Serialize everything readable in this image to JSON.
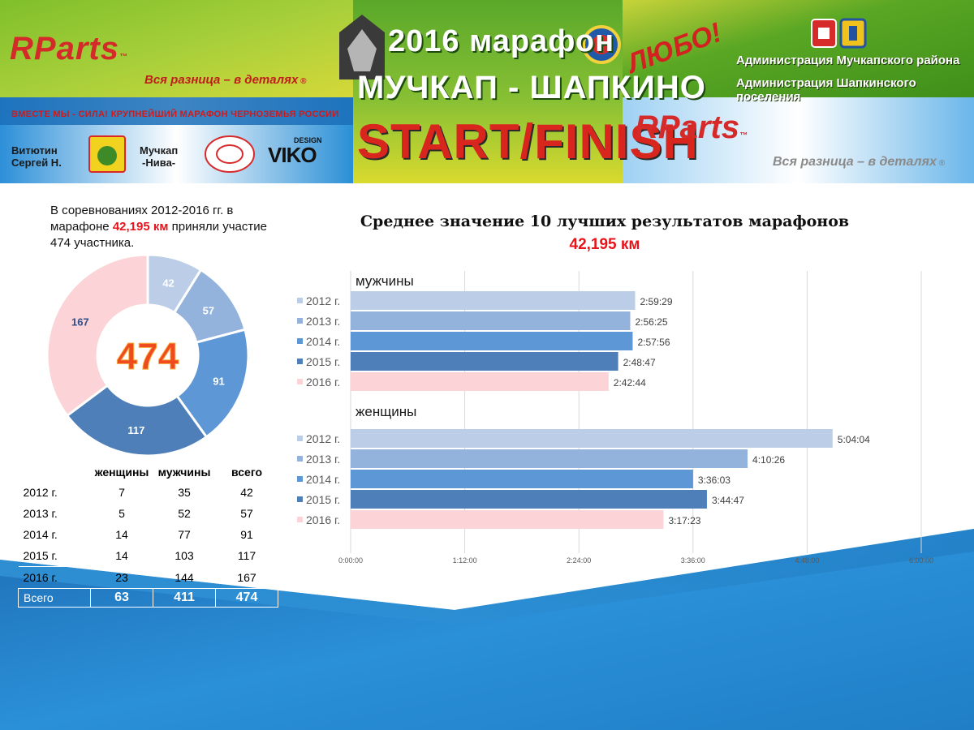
{
  "banner": {
    "brand_left": "RParts",
    "tm": "™",
    "brand_left_tagline": "Вся разница – в деталях",
    "slogan": "ВМЕСТЕ МЫ - СИЛА! КРУПНЕЙШИЙ МАРАФОН ЧЕРНОЗЕМЬЯ РОССИИ",
    "sponsor_1": [
      "Витютин",
      "Сергей Н."
    ],
    "sponsor_2": [
      "Мучкап",
      "-Нива-"
    ],
    "sponsor_3": "VIKO",
    "sponsor_3_small": "DESIGN",
    "center_year": "2016 марафон",
    "center_route": "МУЧКАП - ШАПКИНО",
    "center_start": "START/FINISH",
    "lyubo": "ЛЮБО!",
    "admin_1": "Администрация Мучкапского района",
    "admin_2": "Администрация Шапкинского поселения",
    "brand_right": "RParts",
    "brand_right_tagline": "Вся разница – в деталях",
    "colors": {
      "green": "#5fa523",
      "yellow": "#dcd43a",
      "blue": "#2a8fd6",
      "red": "#d42a2a"
    }
  },
  "intro": {
    "part1": "В соревнованиях 2012-2016 гг. в марафоне ",
    "distance": "42,195 км",
    "part2": " приняли участие 474 участника."
  },
  "donut": {
    "total": "474",
    "segments": [
      {
        "year": "2012 г.",
        "value": 42,
        "color": "#bccde8"
      },
      {
        "year": "2013 г.",
        "value": 57,
        "color": "#94b3dc"
      },
      {
        "year": "2014 г.",
        "value": 91,
        "color": "#5e97d6"
      },
      {
        "year": "2015 г.",
        "value": 117,
        "color": "#4e7fb8"
      },
      {
        "year": "2016 г.",
        "value": 167,
        "color": "#fcd3d6"
      }
    ]
  },
  "table": {
    "headers": [
      "женщины",
      "мужчины",
      "всего"
    ],
    "rows": [
      {
        "year": "2012 г.",
        "women": "7",
        "men": "35",
        "total": "42"
      },
      {
        "year": "2013 г.",
        "women": "5",
        "men": "52",
        "total": "57"
      },
      {
        "year": "2014 г.",
        "women": "14",
        "men": "77",
        "total": "91"
      },
      {
        "year": "2015 г.",
        "women": "14",
        "men": "103",
        "total": "117"
      },
      {
        "year": "2016 г.",
        "women": "23",
        "men": "144",
        "total": "167"
      }
    ],
    "total_row": {
      "year": "Всего",
      "women": "63",
      "men": "411",
      "total": "474"
    }
  },
  "chart_data": {
    "type": "bar",
    "orientation": "horizontal",
    "title": "Среднее значение 10 лучших результатов марафонов",
    "subtitle": "42,195 км",
    "x_ticks": [
      "0:00:00",
      "1:12:00",
      "2:24:00",
      "3:36:00",
      "4:48:00",
      "6:00:00"
    ],
    "xlim": [
      "0:00:00",
      "6:00:00"
    ],
    "grid": true,
    "groups": [
      {
        "name": "мужчины",
        "bars": [
          {
            "year": "2012 г.",
            "value": "2:59:29",
            "color": "#bccde8"
          },
          {
            "year": "2013 г.",
            "value": "2:56:25",
            "color": "#94b3dc"
          },
          {
            "year": "2014 г.",
            "value": "2:57:56",
            "color": "#5e97d6"
          },
          {
            "year": "2015 г.",
            "value": "2:48:47",
            "color": "#4e7fb8"
          },
          {
            "year": "2016 г.",
            "value": "2:42:44",
            "color": "#fcd3d6"
          }
        ]
      },
      {
        "name": "женщины",
        "bars": [
          {
            "year": "2012 г.",
            "value": "5:04:04",
            "color": "#bccde8"
          },
          {
            "year": "2013 г.",
            "value": "4:10:26",
            "color": "#94b3dc"
          },
          {
            "year": "2014 г.",
            "value": "3:36:03",
            "color": "#5e97d6"
          },
          {
            "year": "2015 г.",
            "value": "3:44:47",
            "color": "#4e7fb8"
          },
          {
            "year": "2016 г.",
            "value": "3:17:23",
            "color": "#fcd3d6"
          }
        ]
      }
    ]
  }
}
